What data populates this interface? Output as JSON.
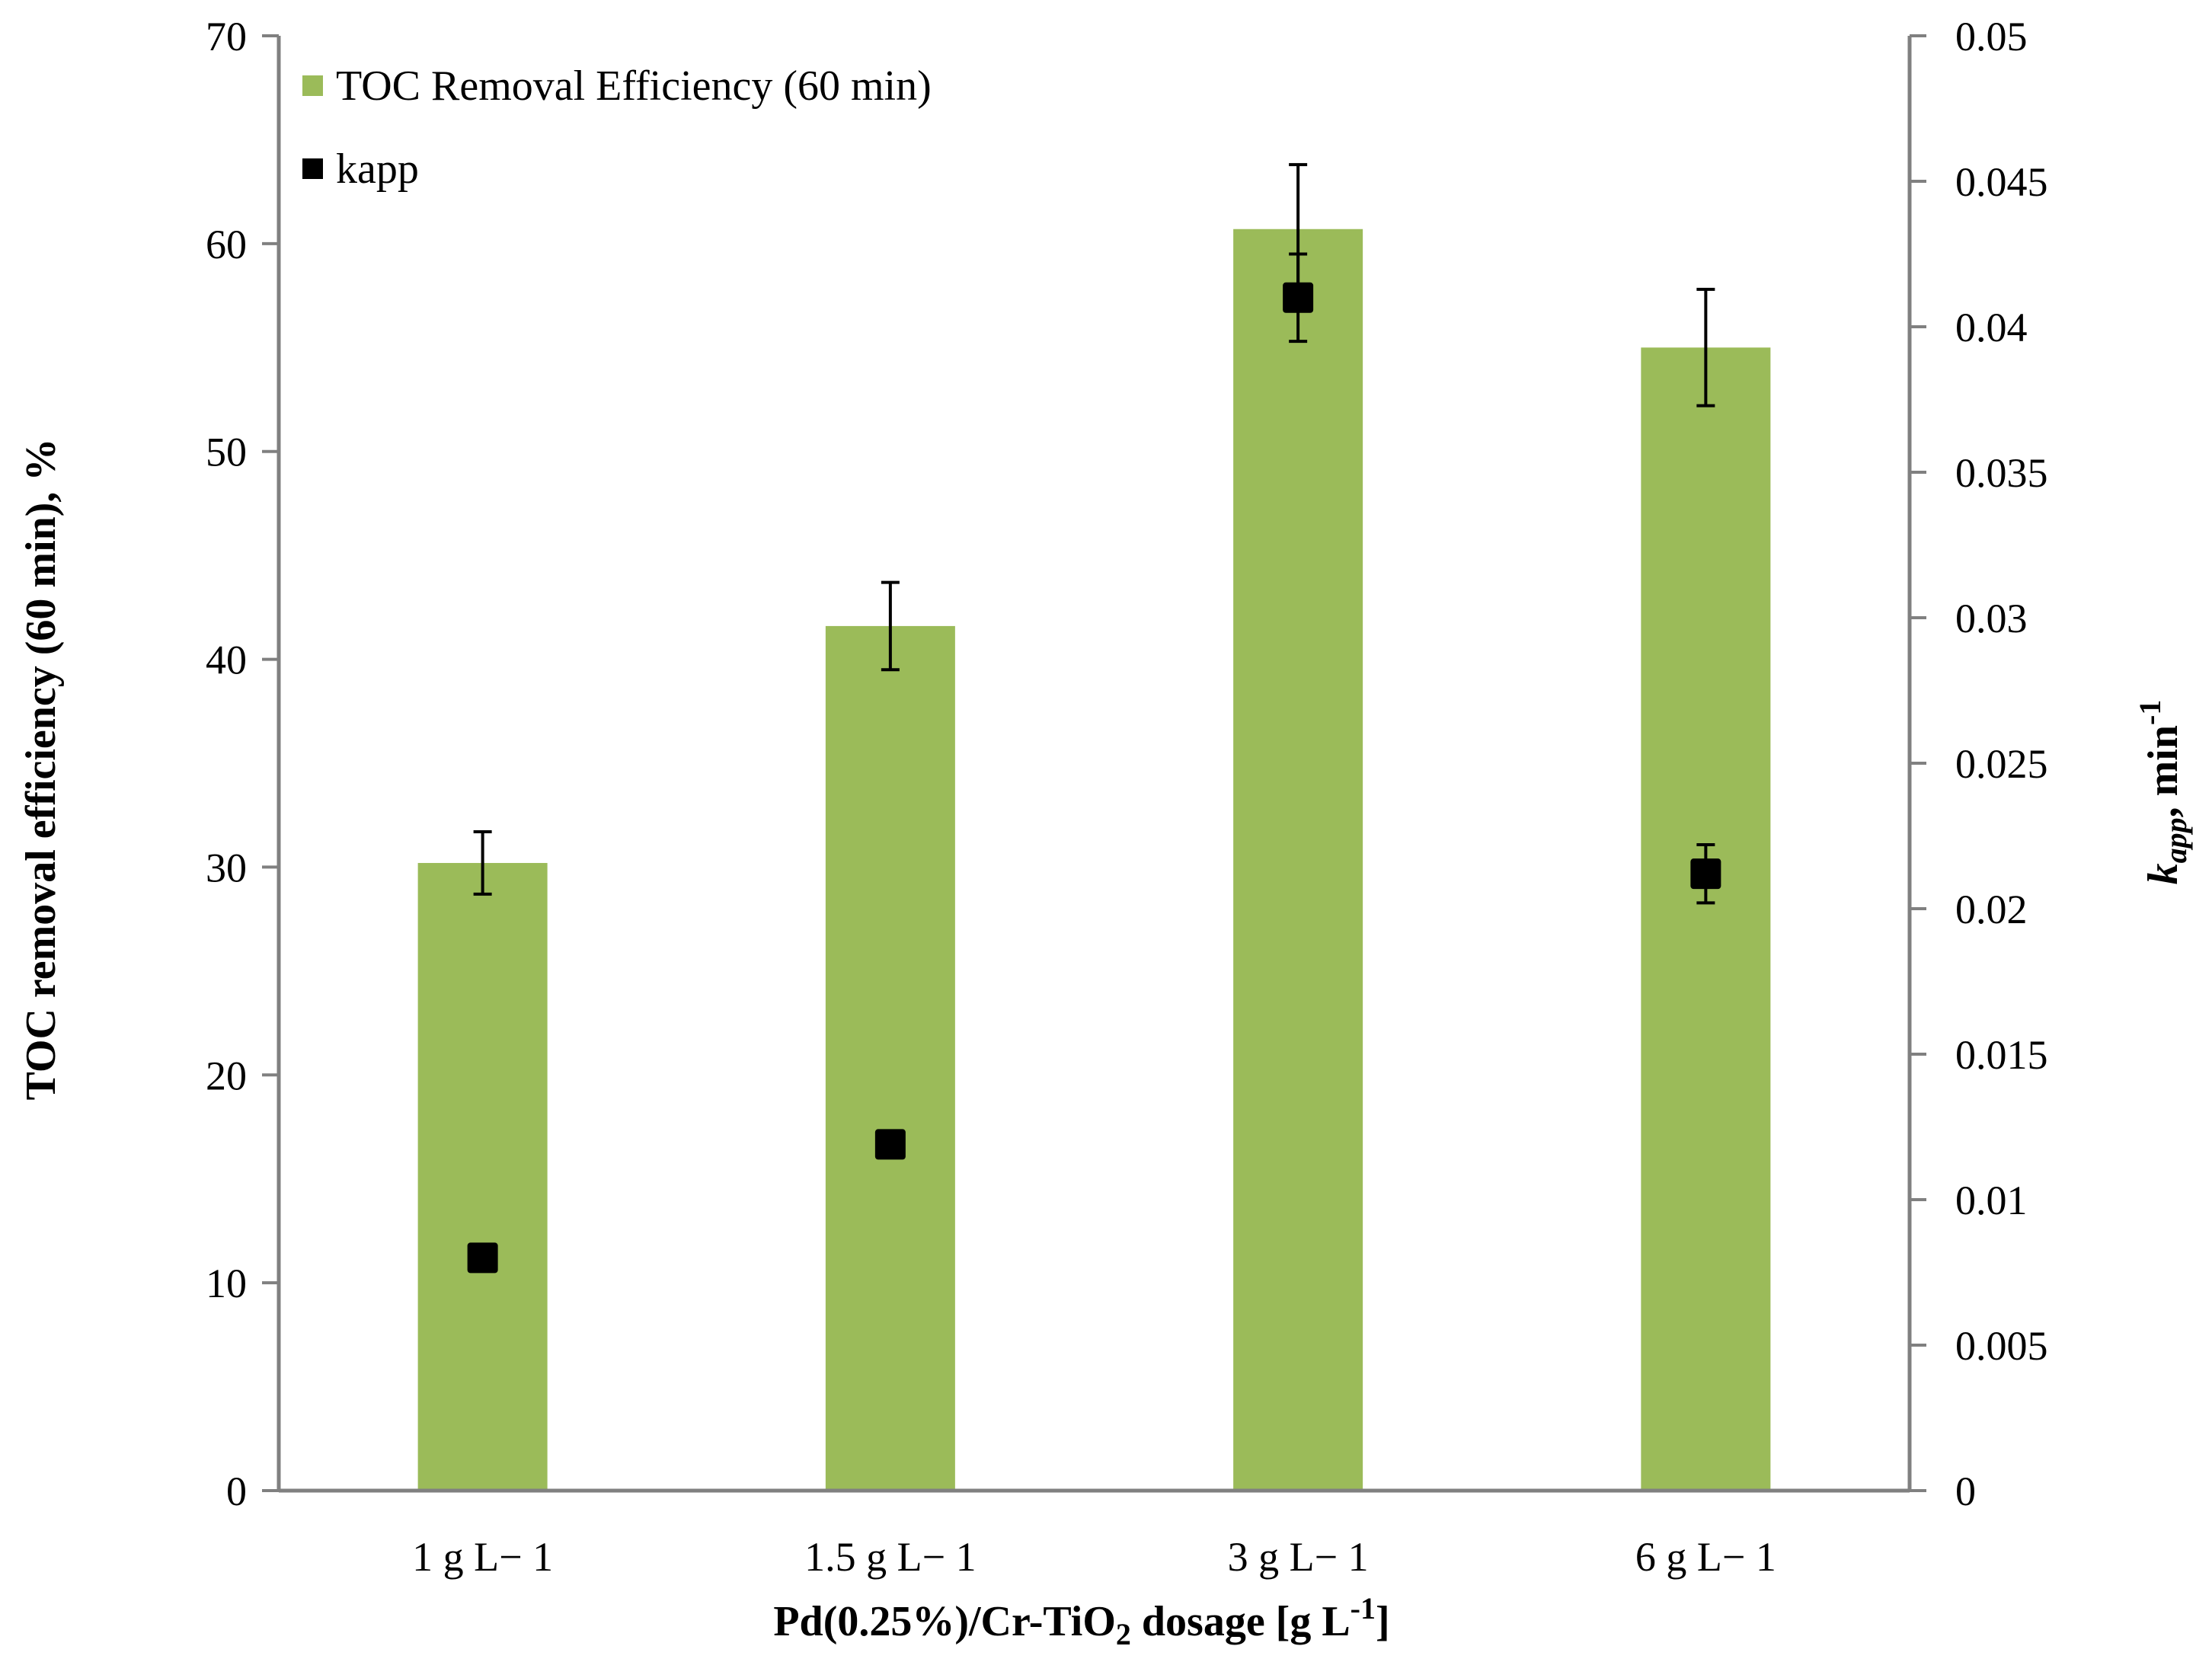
{
  "chart_data": {
    "type": "bar",
    "categories": [
      "1 g L− 1",
      "1.5 g L− 1",
      "3 g L− 1",
      "6 g L− 1"
    ],
    "series": [
      {
        "name": "TOC Removal Efficiency (60 min)",
        "type": "bar",
        "axis": "left",
        "color": "#9bbb59",
        "values": [
          30.2,
          41.6,
          60.7,
          55.0
        ],
        "error": [
          1.5,
          2.1,
          3.1,
          2.8
        ]
      },
      {
        "name": "kapp",
        "type": "scatter",
        "axis": "right",
        "color": "#000000",
        "marker": "square",
        "values": [
          0.008,
          0.0119,
          0.041,
          0.0212
        ],
        "error": [
          0.0,
          0.0,
          0.0015,
          0.001
        ]
      }
    ],
    "y_left": {
      "label_main": "TOC removal efficiency (60 min), %",
      "ylim": [
        0,
        70
      ],
      "ticks": [
        "0",
        "10",
        "20",
        "30",
        "40",
        "50",
        "60",
        "70"
      ]
    },
    "y_right": {
      "label_k": "k",
      "label_sub": "app",
      "label_rest": ", min",
      "label_sup": "-1",
      "ylim": [
        0,
        0.05
      ],
      "ticks": [
        "0",
        "0.005",
        "0.01",
        "0.015",
        "0.02",
        "0.025",
        "0.03",
        "0.035",
        "0.04",
        "0.045",
        "0.05"
      ]
    },
    "x_axis": {
      "label_pre": "Pd(0.25%)/Cr-TiO",
      "label_sub": "2",
      "label_mid": " dosage [g L",
      "label_sup": "-1",
      "label_post": "]"
    },
    "legend": {
      "position": "top-left",
      "items": [
        "TOC Removal Efficiency (60 min)",
        "kapp"
      ]
    }
  }
}
